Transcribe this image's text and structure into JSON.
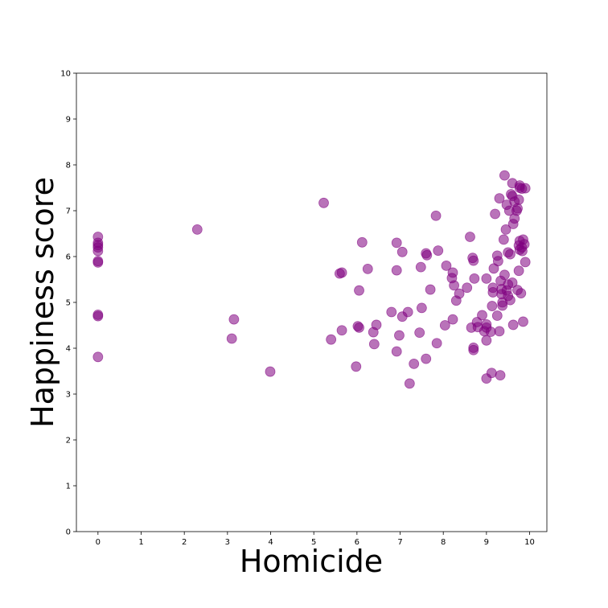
{
  "chart_data": {
    "type": "scatter",
    "title": "",
    "xlabel": "Homicide",
    "ylabel": "Happiness score",
    "xlim": [
      -0.5,
      10.4
    ],
    "ylim": [
      0,
      10
    ],
    "xticks": [
      0,
      1,
      2,
      3,
      4,
      5,
      6,
      7,
      8,
      9,
      10
    ],
    "yticks": [
      0,
      1,
      2,
      3,
      4,
      5,
      6,
      7,
      8,
      9,
      10
    ],
    "grid": false,
    "legend": "none",
    "marker_color": "#800080",
    "marker_alpha": 0.55,
    "points": [
      [
        0,
        6.43
      ],
      [
        0,
        6.3
      ],
      [
        0,
        6.25
      ],
      [
        0,
        6.2
      ],
      [
        0,
        6.12
      ],
      [
        0,
        5.9
      ],
      [
        0,
        5.87
      ],
      [
        0,
        4.73
      ],
      [
        0,
        4.7
      ],
      [
        0,
        3.81
      ],
      [
        2.3,
        6.59
      ],
      [
        3.1,
        4.21
      ],
      [
        3.15,
        4.63
      ],
      [
        3.99,
        3.49
      ],
      [
        5.23,
        7.17
      ],
      [
        5.4,
        4.19
      ],
      [
        5.6,
        5.63
      ],
      [
        5.65,
        5.65
      ],
      [
        5.65,
        4.39
      ],
      [
        5.98,
        3.6
      ],
      [
        6.02,
        4.48
      ],
      [
        6.05,
        4.45
      ],
      [
        6.05,
        5.26
      ],
      [
        6.12,
        6.31
      ],
      [
        6.25,
        5.73
      ],
      [
        6.38,
        4.35
      ],
      [
        6.4,
        4.09
      ],
      [
        6.45,
        4.51
      ],
      [
        6.8,
        4.79
      ],
      [
        6.92,
        6.3
      ],
      [
        6.92,
        5.7
      ],
      [
        6.92,
        3.93
      ],
      [
        6.98,
        4.28
      ],
      [
        7.05,
        6.1
      ],
      [
        7.05,
        4.69
      ],
      [
        7.18,
        4.79
      ],
      [
        7.22,
        3.23
      ],
      [
        7.32,
        3.66
      ],
      [
        7.45,
        4.34
      ],
      [
        7.48,
        5.77
      ],
      [
        7.5,
        4.88
      ],
      [
        7.6,
        6.07
      ],
      [
        7.62,
        6.03
      ],
      [
        7.6,
        3.77
      ],
      [
        7.7,
        5.28
      ],
      [
        7.83,
        6.89
      ],
      [
        7.88,
        6.13
      ],
      [
        7.85,
        4.11
      ],
      [
        8.04,
        4.5
      ],
      [
        8.07,
        5.8
      ],
      [
        8.22,
        5.65
      ],
      [
        8.2,
        5.53
      ],
      [
        8.25,
        5.37
      ],
      [
        8.22,
        4.63
      ],
      [
        8.3,
        5.04
      ],
      [
        8.37,
        5.19
      ],
      [
        8.55,
        5.32
      ],
      [
        8.62,
        6.43
      ],
      [
        8.65,
        4.45
      ],
      [
        8.68,
        5.97
      ],
      [
        8.7,
        5.91
      ],
      [
        8.72,
        5.52
      ],
      [
        8.7,
        4.01
      ],
      [
        8.7,
        3.96
      ],
      [
        8.78,
        4.57
      ],
      [
        8.8,
        4.46
      ],
      [
        8.9,
        4.72
      ],
      [
        8.95,
        4.37
      ],
      [
        9.0,
        5.52
      ],
      [
        9.0,
        4.52
      ],
      [
        9.0,
        4.45
      ],
      [
        9.0,
        4.17
      ],
      [
        9.0,
        3.34
      ],
      [
        9.1,
        4.36
      ],
      [
        9.12,
        3.46
      ],
      [
        9.13,
        4.92
      ],
      [
        9.15,
        5.22
      ],
      [
        9.15,
        5.32
      ],
      [
        9.17,
        5.74
      ],
      [
        9.2,
        6.93
      ],
      [
        9.25,
        6.02
      ],
      [
        9.25,
        4.71
      ],
      [
        9.27,
        5.9
      ],
      [
        9.3,
        7.27
      ],
      [
        9.3,
        4.37
      ],
      [
        9.32,
        3.41
      ],
      [
        9.33,
        5.47
      ],
      [
        9.35,
        5.29
      ],
      [
        9.35,
        5.18
      ],
      [
        9.37,
        5.0
      ],
      [
        9.37,
        4.93
      ],
      [
        9.4,
        6.37
      ],
      [
        9.42,
        7.77
      ],
      [
        9.42,
        5.6
      ],
      [
        9.45,
        6.59
      ],
      [
        9.47,
        7.13
      ],
      [
        9.47,
        5.26
      ],
      [
        9.5,
        6.09
      ],
      [
        9.5,
        5.39
      ],
      [
        9.5,
        5.14
      ],
      [
        9.53,
        7.0
      ],
      [
        9.55,
        6.05
      ],
      [
        9.55,
        5.05
      ],
      [
        9.57,
        7.36
      ],
      [
        9.6,
        7.6
      ],
      [
        9.6,
        7.32
      ],
      [
        9.6,
        5.43
      ],
      [
        9.62,
        6.71
      ],
      [
        9.62,
        4.51
      ],
      [
        9.65,
        7.2
      ],
      [
        9.65,
        6.83
      ],
      [
        9.7,
        7.0
      ],
      [
        9.72,
        7.05
      ],
      [
        9.72,
        5.27
      ],
      [
        9.75,
        7.24
      ],
      [
        9.75,
        6.24
      ],
      [
        9.75,
        5.69
      ],
      [
        9.77,
        7.55
      ],
      [
        9.77,
        7.5
      ],
      [
        9.77,
        6.34
      ],
      [
        9.77,
        6.15
      ],
      [
        9.8,
        5.2
      ],
      [
        9.82,
        7.48
      ],
      [
        9.82,
        6.2
      ],
      [
        9.83,
        6.12
      ],
      [
        9.85,
        6.37
      ],
      [
        9.85,
        4.58
      ],
      [
        9.88,
        6.27
      ],
      [
        9.9,
        7.49
      ],
      [
        9.9,
        5.88
      ]
    ]
  }
}
